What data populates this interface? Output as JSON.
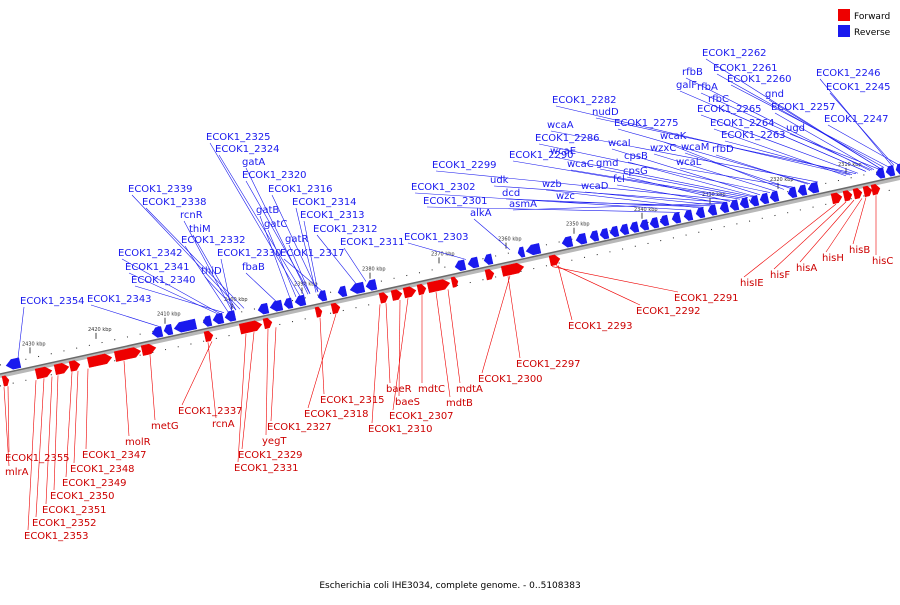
{
  "legend": {
    "forward": {
      "label": "Forward",
      "color": "#ee0000"
    },
    "reverse": {
      "label": "Reverse",
      "color": "#1a1aee"
    }
  },
  "caption": "Escherichia coli IHE3034, complete genome. - 0..5108383",
  "ticks": [
    "2430 kbp",
    "2420 kbp",
    "2410 kbp",
    "2400 kbp",
    "2390 kbp",
    "2380 kbp",
    "2370 kbp",
    "2360 kbp",
    "2350 kbp",
    "2340 kbp",
    "2330 kbp",
    "2320 kbp",
    "2310 kbp"
  ],
  "reverse_genes": [
    "ECOK1_2262",
    "ECOK1_2261",
    "rfbB",
    "rfbA",
    "ECOK1_2260",
    "galF",
    "rfbC",
    "gnd",
    "ECOK1_2246",
    "ECOK1_2245",
    "nudD",
    "ECOK1_2282",
    "ECOK1_2265",
    "ECOK1_2257",
    "wcaA",
    "ECOK1_2275",
    "ECOK1_2264",
    "ugd",
    "ECOK1_2247",
    "ECOK1_2286",
    "wcaK",
    "ECOK1_2263",
    "wcaI",
    "wcaE",
    "wzxC",
    "wcaM",
    "ECOK1_2290",
    "wcaC",
    "cpsB",
    "gmd",
    "rfbD",
    "wcaL",
    "ECOK1_2299",
    "udk",
    "fcl",
    "cpsG",
    "wzb",
    "ECOK1_2302",
    "dcd",
    "wcaD",
    "wzc",
    "ECOK1_2301",
    "asmA",
    "alkA",
    "ECOK1_2303",
    "ECOK1_2325",
    "ECOK1_2324",
    "gatA",
    "ECOK1_2320",
    "ECOK1_2316",
    "ECOK1_2339",
    "ECOK1_2338",
    "gatB",
    "ECOK1_2314",
    "rcnR",
    "ECOK1_2313",
    "gatC",
    "thiM",
    "ECOK1_2312",
    "ECOK1_2332",
    "gatR",
    "ECOK1_2311",
    "ECOK1_2342",
    "ECOK1_2330",
    "ECOK1_2317",
    "ECOK1_2341",
    "fbaB",
    "thiD",
    "ECOK1_2340",
    "ECOK1_2354",
    "ECOK1_2343"
  ],
  "forward_genes": [
    "ECOK1_2291",
    "ECOK1_2292",
    "ECOK1_2293",
    "hisIE",
    "hisF",
    "hisA",
    "hisH",
    "hisB",
    "hisC",
    "ECOK1_2297",
    "ECOK1_2300",
    "mdtA",
    "baeR",
    "mdtC",
    "mdtB",
    "baeS",
    "ECOK1_2307",
    "ECOK1_2310",
    "ECOK1_2315",
    "ECOK1_2318",
    "ECOK1_2337",
    "rcnA",
    "ECOK1_2327",
    "yegT",
    "ECOK1_2329",
    "ECOK1_2331",
    "metG",
    "molR",
    "ECOK1_2355",
    "ECOK1_2347",
    "mlrA",
    "ECOK1_2348",
    "ECOK1_2349",
    "ECOK1_2350",
    "ECOK1_2351",
    "ECOK1_2352",
    "ECOK1_2353"
  ]
}
